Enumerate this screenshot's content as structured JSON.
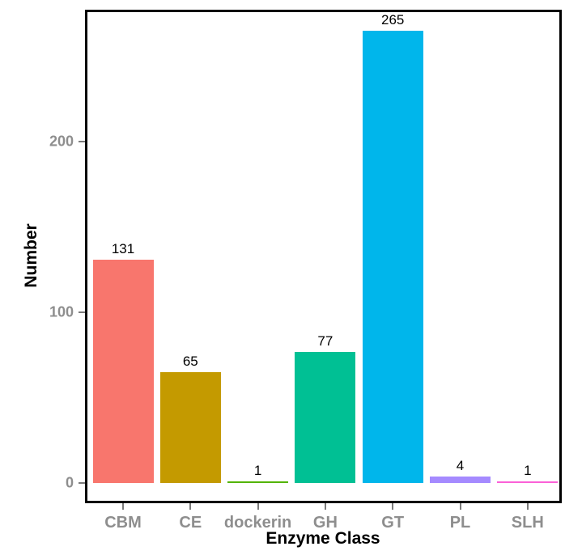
{
  "chart_data": {
    "type": "bar",
    "title": "",
    "categories": [
      "CBM",
      "CE",
      "dockerin",
      "GH",
      "GT",
      "PL",
      "SLH"
    ],
    "values": [
      131,
      65,
      1,
      77,
      265,
      4,
      1
    ],
    "value_labels": [
      "131",
      "65",
      "1",
      "77",
      "265",
      "4",
      "1"
    ],
    "bar_colors": [
      "#F8766D",
      "#C49A00",
      "#53B400",
      "#00C094",
      "#00B6EB",
      "#A58AFF",
      "#FB61D7"
    ],
    "xlabel": "Enzyme Class",
    "ylabel": "Number",
    "y_ticks": [
      0,
      100,
      200
    ],
    "ylim": [
      0,
      277
    ],
    "grid": "off",
    "legend": "none",
    "style": {
      "axis_text_color": "#8e8e8e",
      "tick_mark_color": "#7a7a7a",
      "panel_border_color": "#000000",
      "background_color": "#ffffff",
      "value_label_color": "#000000"
    }
  }
}
